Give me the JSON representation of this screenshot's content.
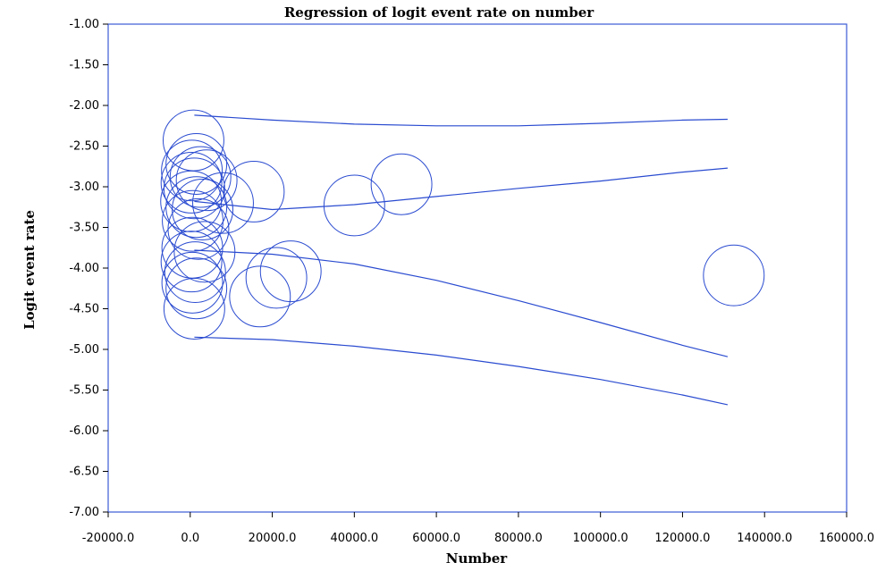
{
  "chart_data": {
    "type": "scatter",
    "title": "Regression of logit event rate on number",
    "xlabel": "Number",
    "ylabel": "Logit event rate",
    "xlim": [
      -20000,
      160000
    ],
    "ylim": [
      -7.0,
      -1.0
    ],
    "xticks": [
      -20000,
      0,
      20000,
      40000,
      60000,
      80000,
      100000,
      120000,
      140000,
      160000
    ],
    "xtick_labels": [
      "-20000.0",
      "0.0",
      "20000.0",
      "40000.0",
      "60000.0",
      "80000.0",
      "100000.0",
      "120000.0",
      "140000.0",
      "160000.0"
    ],
    "yticks": [
      -1.0,
      -1.5,
      -2.0,
      -2.5,
      -3.0,
      -3.5,
      -4.0,
      -4.5,
      -5.0,
      -5.5,
      -6.0,
      -6.5,
      -7.0
    ],
    "ytick_labels": [
      "-1.00",
      "-1.50",
      "-2.00",
      "-2.50",
      "-3.00",
      "-3.50",
      "-4.00",
      "-4.50",
      "-5.00",
      "-5.50",
      "-6.00",
      "-6.50",
      "-7.00"
    ],
    "grid": false,
    "bubbles": [
      {
        "x": 800,
        "y": -2.43
      },
      {
        "x": 1500,
        "y": -2.72
      },
      {
        "x": 400,
        "y": -2.8
      },
      {
        "x": 2500,
        "y": -2.88
      },
      {
        "x": 300,
        "y": -2.95
      },
      {
        "x": 1000,
        "y": -3.02
      },
      {
        "x": 4000,
        "y": -2.92
      },
      {
        "x": 200,
        "y": -3.18
      },
      {
        "x": 1500,
        "y": -3.25
      },
      {
        "x": 3000,
        "y": -3.28
      },
      {
        "x": 600,
        "y": -3.42
      },
      {
        "x": 2000,
        "y": -3.52
      },
      {
        "x": 500,
        "y": -3.75
      },
      {
        "x": 3500,
        "y": -3.8
      },
      {
        "x": 300,
        "y": -3.92
      },
      {
        "x": 1200,
        "y": -4.05
      },
      {
        "x": 500,
        "y": -4.18
      },
      {
        "x": 1500,
        "y": -4.25
      },
      {
        "x": 1000,
        "y": -4.5
      },
      {
        "x": 8000,
        "y": -3.2
      },
      {
        "x": 15500,
        "y": -3.06
      },
      {
        "x": 17000,
        "y": -4.35
      },
      {
        "x": 21000,
        "y": -4.12
      },
      {
        "x": 24500,
        "y": -4.04
      },
      {
        "x": 40000,
        "y": -3.23
      },
      {
        "x": 51500,
        "y": -2.97
      },
      {
        "x": 132500,
        "y": -4.09
      }
    ],
    "bubble_radius_data": 7400,
    "series": [
      {
        "x": [
          1000,
          20000,
          40000,
          60000,
          80000,
          100000,
          120000,
          131000
        ],
        "values": [
          -2.12,
          -2.18,
          -2.23,
          -2.25,
          -2.25,
          -2.22,
          -2.18,
          -2.17
        ]
      },
      {
        "x": [
          1000,
          20000,
          40000,
          60000,
          80000,
          100000,
          120000,
          131000
        ],
        "values": [
          -3.18,
          -3.28,
          -3.22,
          -3.12,
          -3.02,
          -2.93,
          -2.82,
          -2.77
        ]
      },
      {
        "x": [
          1000,
          20000,
          40000,
          60000,
          80000,
          100000,
          120000,
          131000
        ],
        "values": [
          -3.78,
          -3.83,
          -3.95,
          -4.15,
          -4.4,
          -4.67,
          -4.95,
          -5.09
        ]
      },
      {
        "x": [
          1000,
          20000,
          40000,
          60000,
          80000,
          100000,
          120000,
          131000
        ],
        "values": [
          -4.85,
          -4.88,
          -4.96,
          -5.07,
          -5.21,
          -5.37,
          -5.56,
          -5.68
        ]
      }
    ]
  }
}
